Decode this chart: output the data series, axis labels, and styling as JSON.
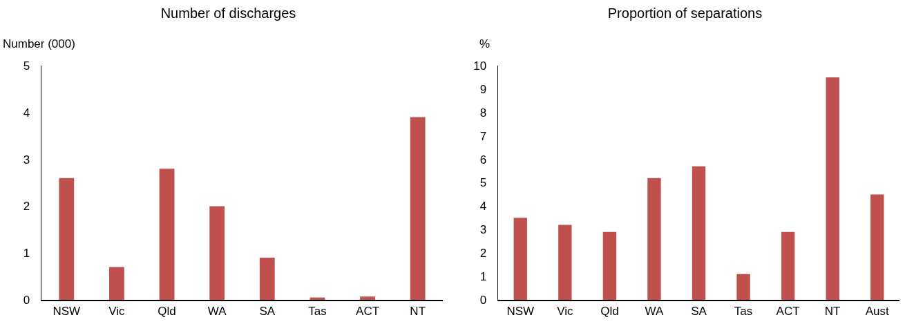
{
  "chart_data": [
    {
      "type": "bar",
      "title": "Number of discharges",
      "ylabel": "Number (000)",
      "categories": [
        "NSW",
        "Vic",
        "Qld",
        "WA",
        "SA",
        "Tas",
        "ACT",
        "NT"
      ],
      "series": [
        {
          "color": "#c0504d",
          "values": [
            2.6,
            0.7,
            2.8,
            2.0,
            0.9,
            0.05,
            0.07,
            3.9
          ]
        }
      ],
      "ylim": [
        0,
        5
      ],
      "yticks": [
        0,
        1,
        2,
        3,
        4,
        5
      ],
      "grid": false
    },
    {
      "type": "bar",
      "title": "Proportion of separations",
      "ylabel": "%",
      "categories": [
        "NSW",
        "Vic",
        "Qld",
        "WA",
        "SA",
        "Tas",
        "ACT",
        "NT",
        "Aust"
      ],
      "series": [
        {
          "color": "#c0504d",
          "values": [
            3.5,
            3.2,
            2.9,
            5.2,
            5.7,
            1.1,
            2.9,
            9.5,
            4.5
          ]
        }
      ],
      "ylim": [
        0,
        10
      ],
      "yticks": [
        0,
        1,
        2,
        3,
        4,
        5,
        6,
        7,
        8,
        9,
        10
      ],
      "grid": false
    }
  ]
}
